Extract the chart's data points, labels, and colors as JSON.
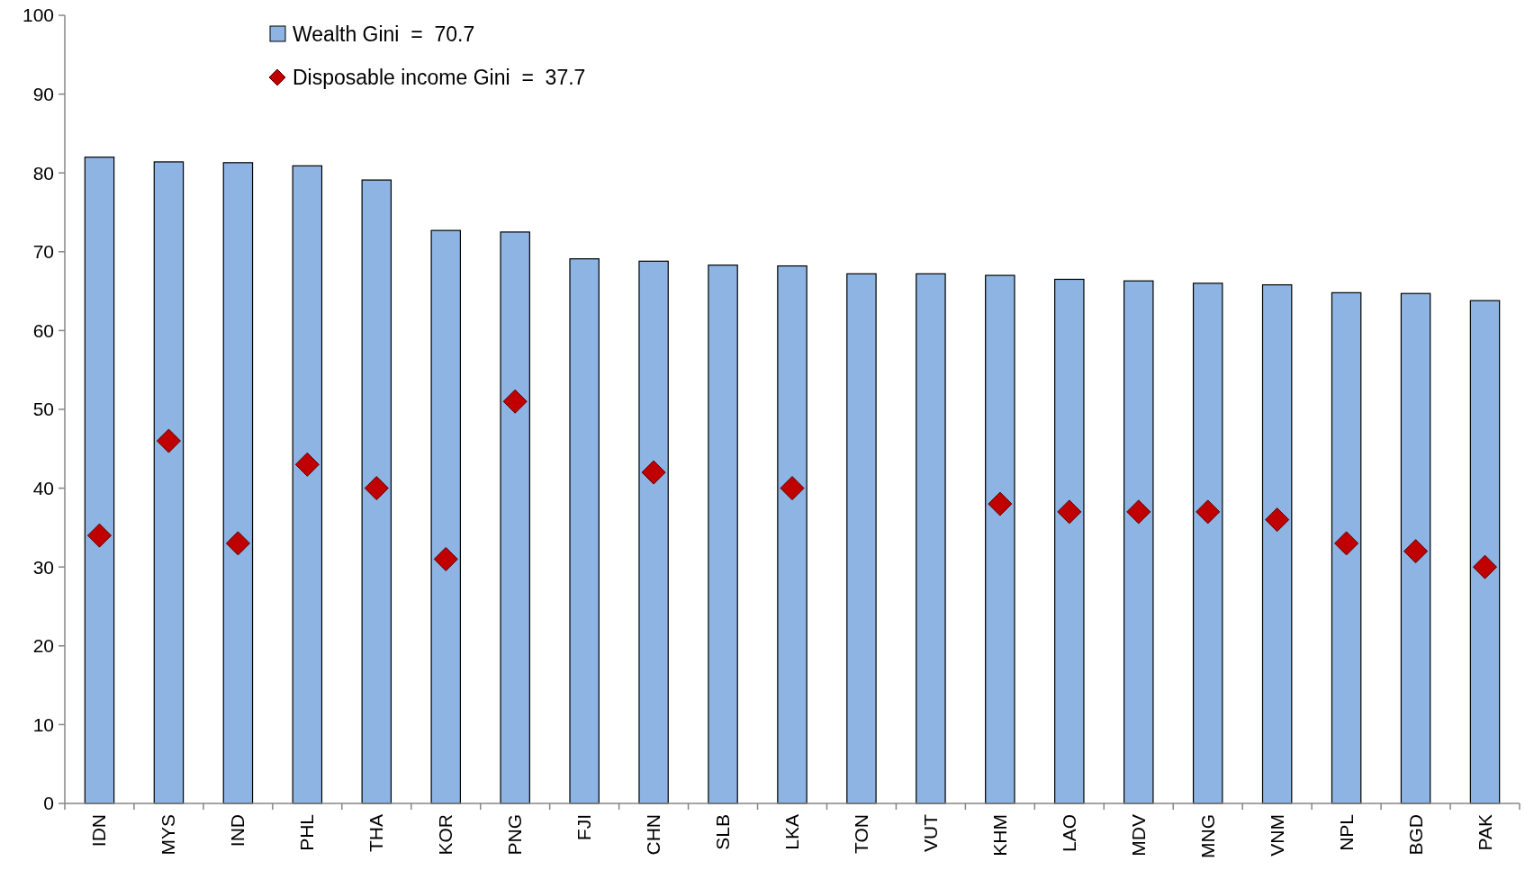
{
  "chart_data": {
    "type": "bar",
    "categories": [
      "IDN",
      "MYS",
      "IND",
      "PHL",
      "THA",
      "KOR",
      "PNG",
      "FJI",
      "CHN",
      "SLB",
      "LKA",
      "TON",
      "VUT",
      "KHM",
      "LAO",
      "MDV",
      "MNG",
      "VNM",
      "NPL",
      "BGD",
      "PAK"
    ],
    "series": [
      {
        "name": "Wealth Gini  =  70.7",
        "color": "#8db4e2",
        "values": [
          82.0,
          81.4,
          81.3,
          80.9,
          79.1,
          72.7,
          72.5,
          69.1,
          68.8,
          68.3,
          68.2,
          67.2,
          67.2,
          67.0,
          66.5,
          66.3,
          66.0,
          65.8,
          64.8,
          64.7,
          63.8
        ]
      },
      {
        "name": "Disposable income Gini  =  37.7",
        "type": "scatter",
        "marker": "diamond",
        "color": "#c00000",
        "x": [
          "IDN",
          "MYS",
          "IND",
          "PHL",
          "THA",
          "KOR",
          "PNG",
          "FJI",
          "CHN",
          "SLB",
          "LKA",
          "TON",
          "VUT",
          "KHM",
          "LAO",
          "MDV",
          "MNG",
          "VNM",
          "NPL",
          "BGD",
          "PAK"
        ],
        "values": [
          34,
          46,
          33,
          43,
          40,
          31,
          51,
          null,
          42,
          null,
          40,
          null,
          null,
          38,
          37,
          37,
          37,
          36,
          33,
          32,
          30
        ]
      }
    ],
    "ylim": [
      0,
      100
    ],
    "yticks": [
      0,
      10,
      20,
      30,
      40,
      50,
      60,
      70,
      80,
      90,
      100
    ],
    "grid": false,
    "legend": "top left"
  }
}
